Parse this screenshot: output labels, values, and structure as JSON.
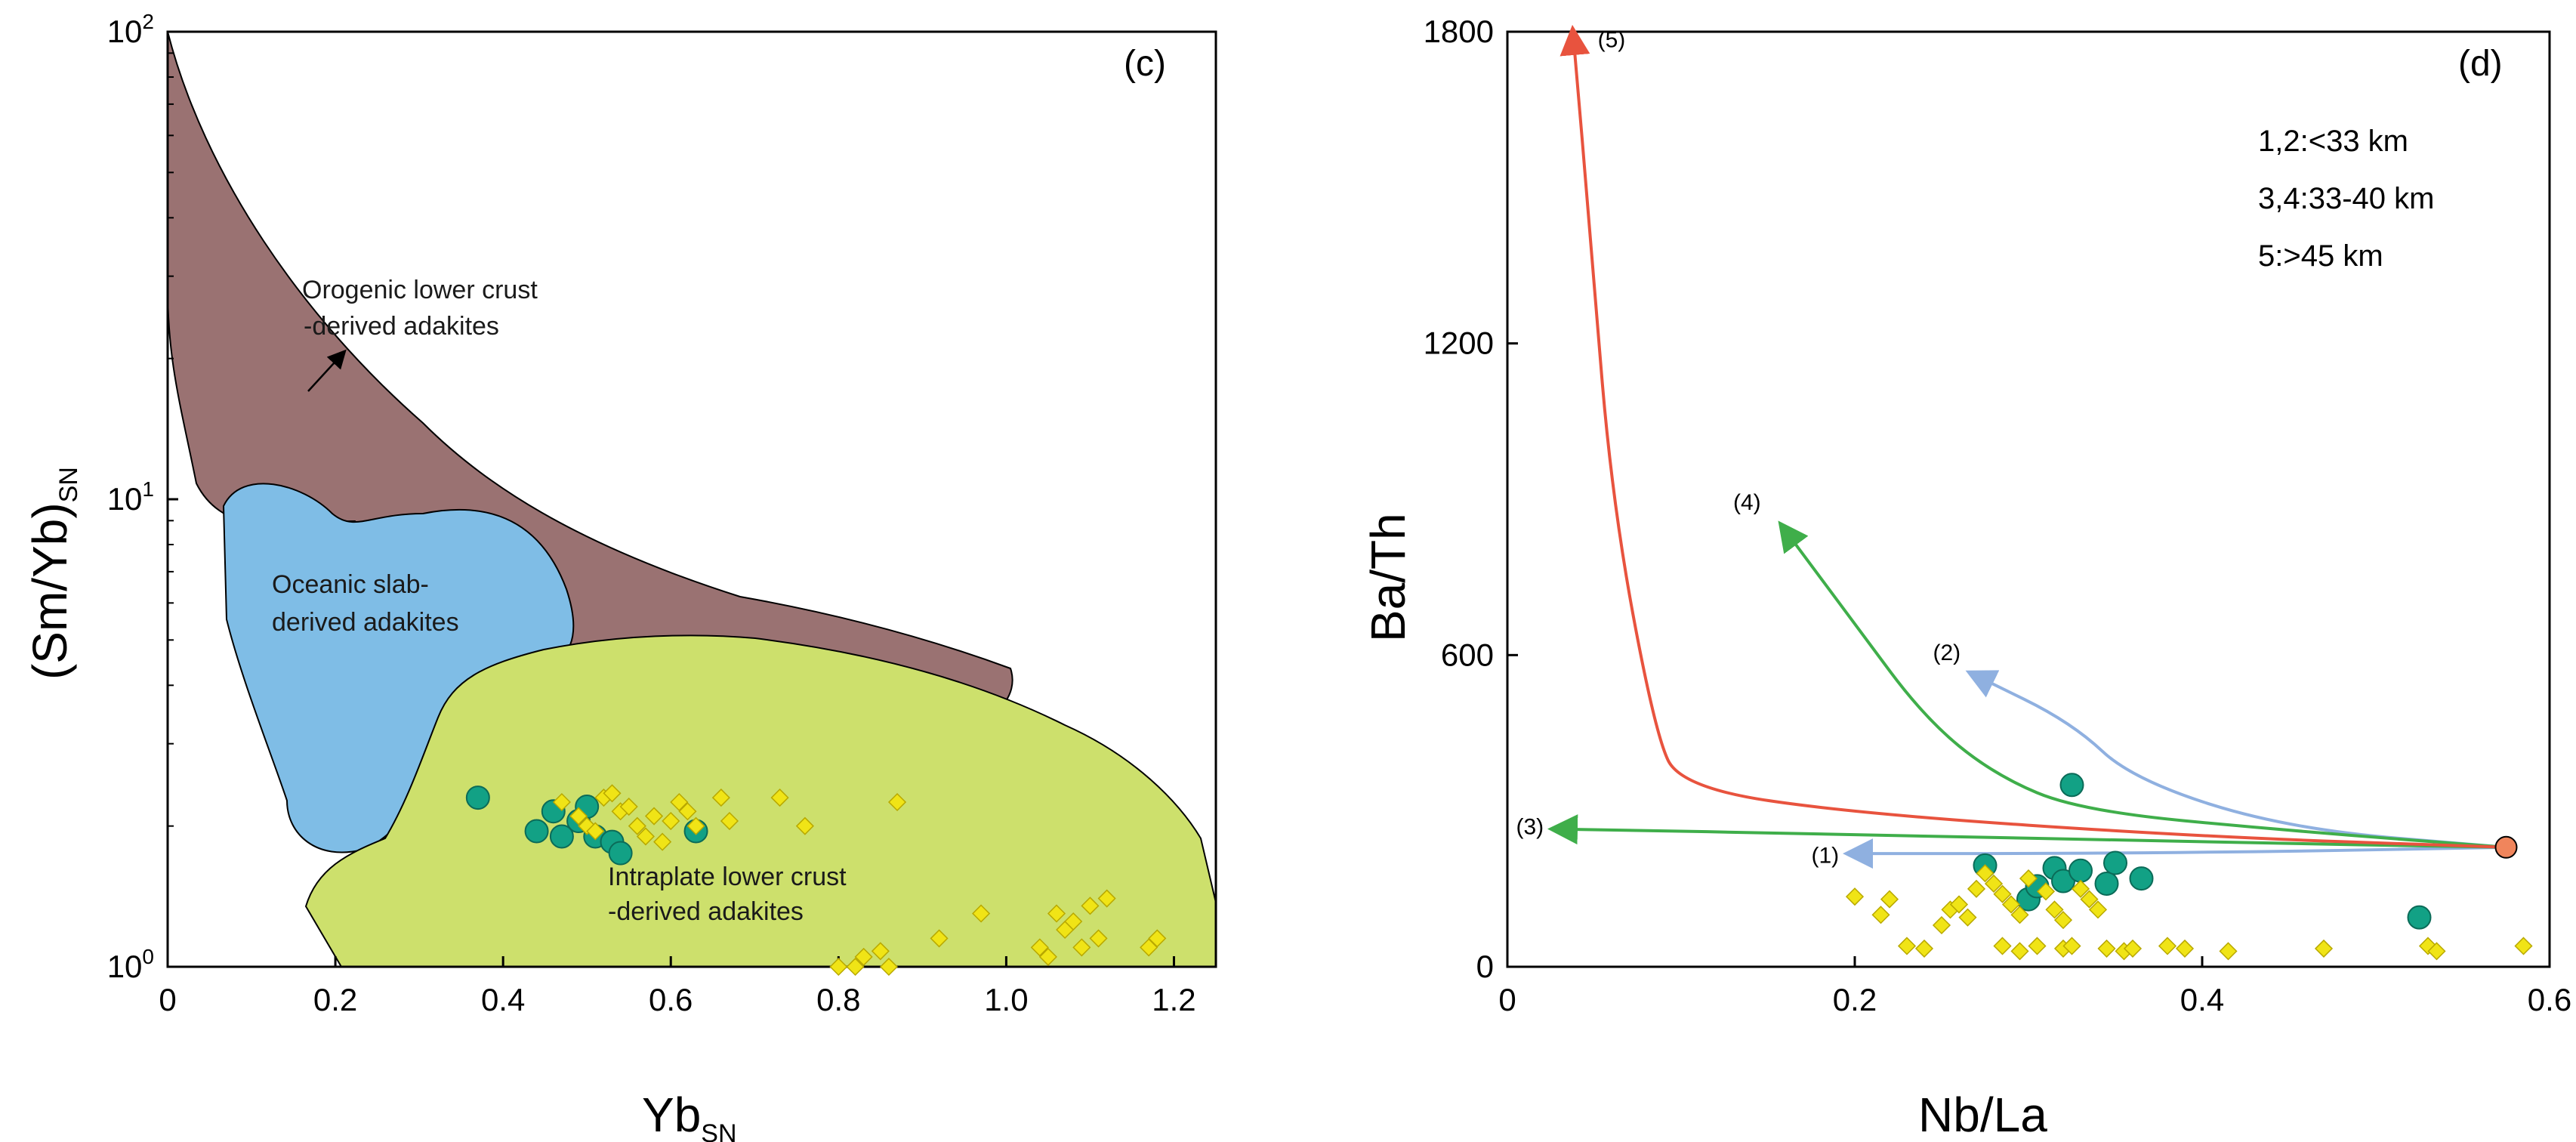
{
  "chart_data": [
    {
      "type": "scatter",
      "panel_label": "(c)",
      "xlabel": "Yb",
      "xlabel_sub": "SN",
      "ylabel": "(Sm/Yb)",
      "ylabel_sub": "SN",
      "yscale": "log",
      "xlim": [
        0,
        1.25
      ],
      "ylim": [
        1,
        100
      ],
      "x_ticks": [
        "0",
        "0.2",
        "0.4",
        "0.6",
        "0.8",
        "1.0",
        "1.2"
      ],
      "y_ticks": [
        {
          "base": "10",
          "exp": "0"
        },
        {
          "base": "10",
          "exp": "1"
        },
        {
          "base": "10",
          "exp": "2"
        }
      ],
      "regions": [
        {
          "name": "Orogenic lower crust",
          "line2": "-derived adakites",
          "color": "#9a7272"
        },
        {
          "name": "Oceanic slab-",
          "line2": "derived adakites",
          "color": "#7fbde6"
        },
        {
          "name": "Intraplate lower crust",
          "line2": "-derived adakites",
          "color": "#cde06c"
        }
      ],
      "series": [
        {
          "name": "circles",
          "color": "#12a185",
          "points": [
            [
              0.37,
              2.3
            ],
            [
              0.44,
              1.95
            ],
            [
              0.46,
              2.15
            ],
            [
              0.47,
              1.9
            ],
            [
              0.49,
              2.05
            ],
            [
              0.5,
              2.2
            ],
            [
              0.51,
              1.9
            ],
            [
              0.53,
              1.85
            ],
            [
              0.54,
              1.75
            ],
            [
              0.63,
              1.95
            ]
          ]
        },
        {
          "name": "diamonds",
          "color": "#f0e416",
          "points": [
            [
              0.47,
              2.25
            ],
            [
              0.49,
              2.1
            ],
            [
              0.5,
              2.0
            ],
            [
              0.51,
              1.95
            ],
            [
              0.52,
              2.3
            ],
            [
              0.53,
              2.35
            ],
            [
              0.54,
              2.15
            ],
            [
              0.55,
              2.2
            ],
            [
              0.56,
              2.0
            ],
            [
              0.57,
              1.9
            ],
            [
              0.58,
              2.1
            ],
            [
              0.59,
              1.85
            ],
            [
              0.6,
              2.05
            ],
            [
              0.61,
              2.25
            ],
            [
              0.62,
              2.15
            ],
            [
              0.63,
              2.0
            ],
            [
              0.66,
              2.3
            ],
            [
              0.67,
              2.05
            ],
            [
              0.73,
              2.3
            ],
            [
              0.76,
              2.0
            ],
            [
              0.8,
              1.0
            ],
            [
              0.82,
              1.0
            ],
            [
              0.83,
              1.05
            ],
            [
              0.85,
              1.08
            ],
            [
              0.86,
              1.0
            ],
            [
              0.87,
              2.25
            ],
            [
              0.92,
              1.15
            ],
            [
              0.97,
              1.3
            ],
            [
              1.04,
              1.1
            ],
            [
              1.05,
              1.05
            ],
            [
              1.06,
              1.3
            ],
            [
              1.07,
              1.2
            ],
            [
              1.08,
              1.25
            ],
            [
              1.09,
              1.1
            ],
            [
              1.1,
              1.35
            ],
            [
              1.11,
              1.15
            ],
            [
              1.12,
              1.4
            ],
            [
              1.17,
              1.1
            ],
            [
              1.18,
              1.15
            ]
          ]
        }
      ]
    },
    {
      "type": "scatter",
      "panel_label": "(d)",
      "xlabel": "Nb/La",
      "ylabel": "Ba/Th",
      "xlim": [
        0,
        0.6
      ],
      "ylim": [
        0,
        1800
      ],
      "x_ticks": [
        "0",
        "0.2",
        "0.4",
        "0.6"
      ],
      "y_ticks": [
        "0",
        "600",
        "1200",
        "1800"
      ],
      "legend_text": [
        "1,2:<33 km",
        "3,4:33-40 km",
        "5:>45 km"
      ],
      "source_point": {
        "x": 0.575,
        "y": 230,
        "color": "#f0855c"
      },
      "trajectories": [
        {
          "label": "(1)",
          "color": "#8fb0e0",
          "points": [
            [
              0.575,
              230
            ],
            [
              0.45,
              222
            ],
            [
              0.32,
              218
            ],
            [
              0.2,
              218
            ]
          ],
          "label_at": [
            0.175,
            200
          ]
        },
        {
          "label": "(2)",
          "color": "#8fb0e0",
          "points": [
            [
              0.575,
              230
            ],
            [
              0.45,
              265
            ],
            [
              0.36,
              360
            ],
            [
              0.325,
              470
            ],
            [
              0.27,
              560
            ]
          ],
          "label_at": [
            0.245,
            590
          ]
        },
        {
          "label": "(3)",
          "color": "#3fae4a",
          "points": [
            [
              0.575,
              230
            ],
            [
              0.4,
              240
            ],
            [
              0.2,
              255
            ],
            [
              0.03,
              265
            ]
          ],
          "label_at": [
            0.005,
            255
          ]
        },
        {
          "label": "(4)",
          "color": "#3fae4a",
          "points": [
            [
              0.575,
              230
            ],
            [
              0.45,
              262
            ],
            [
              0.33,
              300
            ],
            [
              0.28,
              370
            ],
            [
              0.24,
              480
            ],
            [
              0.2,
              660
            ],
            [
              0.16,
              840
            ]
          ],
          "label_at": [
            0.13,
            880
          ]
        },
        {
          "label": "(5)",
          "color": "#e8533e",
          "points": [
            [
              0.575,
              230
            ],
            [
              0.4,
              250
            ],
            [
              0.2,
              295
            ],
            [
              0.1,
              345
            ],
            [
              0.085,
              450
            ],
            [
              0.06,
              900
            ],
            [
              0.048,
              1400
            ],
            [
              0.038,
              1790
            ]
          ],
          "label_at": [
            0.052,
            1770
          ]
        }
      ],
      "series": [
        {
          "name": "circles",
          "color": "#12a185",
          "points": [
            [
              0.275,
              195
            ],
            [
              0.3,
              130
            ],
            [
              0.305,
              155
            ],
            [
              0.315,
              190
            ],
            [
              0.32,
              165
            ],
            [
              0.325,
              350
            ],
            [
              0.33,
              185
            ],
            [
              0.345,
              160
            ],
            [
              0.35,
              200
            ],
            [
              0.365,
              170
            ],
            [
              0.525,
              95
            ]
          ]
        },
        {
          "name": "diamonds",
          "color": "#f0e416",
          "points": [
            [
              0.2,
              135
            ],
            [
              0.215,
              100
            ],
            [
              0.22,
              130
            ],
            [
              0.23,
              40
            ],
            [
              0.24,
              35
            ],
            [
              0.25,
              80
            ],
            [
              0.255,
              110
            ],
            [
              0.26,
              120
            ],
            [
              0.265,
              95
            ],
            [
              0.27,
              150
            ],
            [
              0.275,
              180
            ],
            [
              0.28,
              160
            ],
            [
              0.285,
              140
            ],
            [
              0.285,
              40
            ],
            [
              0.29,
              120
            ],
            [
              0.295,
              100
            ],
            [
              0.295,
              30
            ],
            [
              0.3,
              170
            ],
            [
              0.305,
              40
            ],
            [
              0.31,
              145
            ],
            [
              0.315,
              110
            ],
            [
              0.32,
              90
            ],
            [
              0.32,
              35
            ],
            [
              0.325,
              40
            ],
            [
              0.33,
              150
            ],
            [
              0.335,
              130
            ],
            [
              0.34,
              110
            ],
            [
              0.345,
              35
            ],
            [
              0.355,
              30
            ],
            [
              0.36,
              35
            ],
            [
              0.38,
              40
            ],
            [
              0.39,
              35
            ],
            [
              0.415,
              30
            ],
            [
              0.47,
              35
            ],
            [
              0.53,
              40
            ],
            [
              0.535,
              30
            ],
            [
              0.585,
              40
            ]
          ]
        }
      ]
    }
  ]
}
